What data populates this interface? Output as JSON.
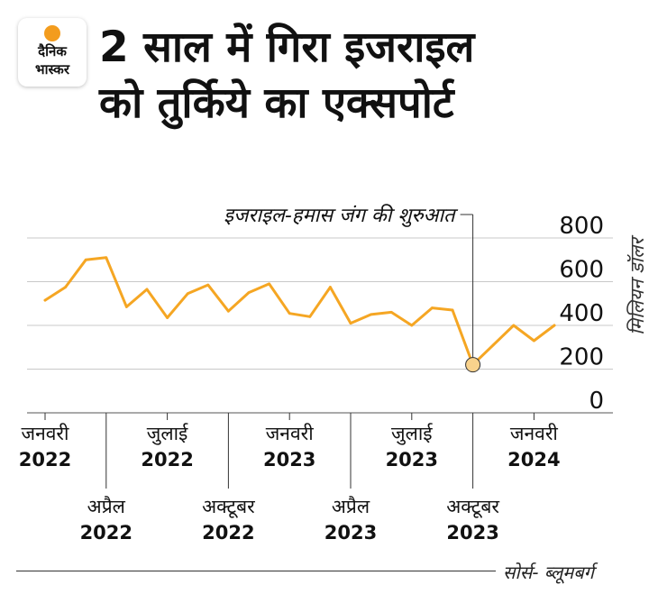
{
  "logo": {
    "line1": "दैनिक",
    "line2": "भास्कर"
  },
  "title": {
    "line1": "2 साल में गिरा इजराइल",
    "line2": "को तुर्किये का एक्सपोर्ट"
  },
  "colors": {
    "line": "#f5a623",
    "marker_fill": "#f9d28c",
    "grid": "#c8c8c8",
    "text": "#111111"
  },
  "chart_data": {
    "type": "line",
    "ylabel": "मिलियन डॉलर",
    "ylim": [
      0,
      800
    ],
    "yticks": [
      0,
      200,
      400,
      600,
      800
    ],
    "x_start": "2022-01",
    "series": [
      {
        "values": [
          515,
          575,
          700,
          710,
          485,
          565,
          435,
          545,
          585,
          465,
          550,
          590,
          455,
          440,
          575,
          410,
          450,
          460,
          400,
          480,
          470,
          220,
          310,
          400,
          330,
          400
        ]
      }
    ],
    "x_labels_top": [
      {
        "month": "जनवरी",
        "year": "2022"
      },
      {
        "month": "जुलाई",
        "year": "2022"
      },
      {
        "month": "जनवरी",
        "year": "2023"
      },
      {
        "month": "जुलाई",
        "year": "2023"
      },
      {
        "month": "जनवरी",
        "year": "2024"
      }
    ],
    "x_labels_bottom": [
      {
        "month": "अप्रैल",
        "year": "2022"
      },
      {
        "month": "अक्टूबर",
        "year": "2022"
      },
      {
        "month": "अप्रैल",
        "year": "2023"
      },
      {
        "month": "अक्टूबर",
        "year": "2023"
      }
    ],
    "annotation": {
      "text": "इजराइल-हमास जंग की शुरुआत",
      "month": "2023-10",
      "value": 220
    },
    "grid": true
  },
  "source": "सोर्स- ब्लूमबर्ग"
}
